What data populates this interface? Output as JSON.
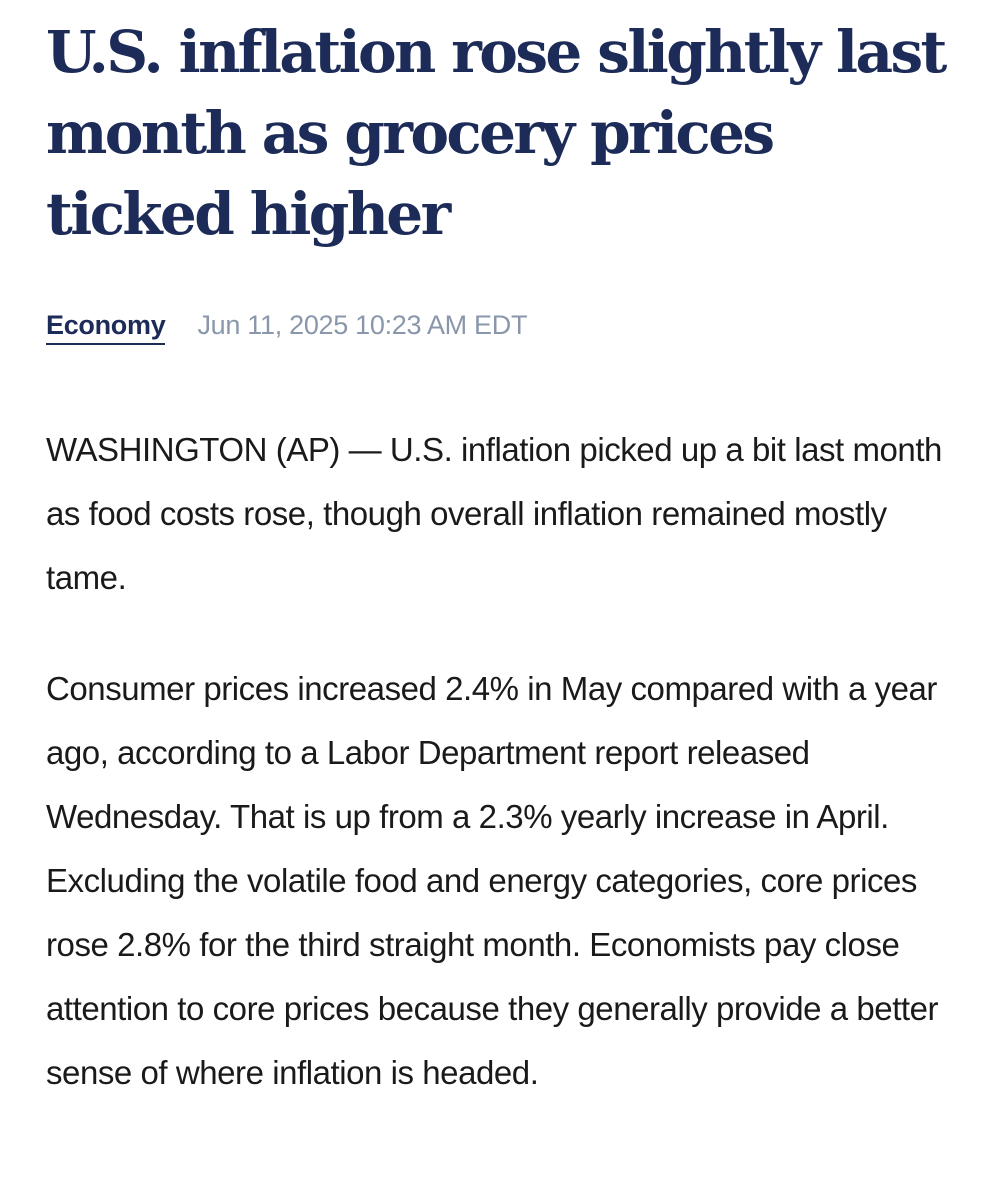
{
  "article": {
    "headline": "U.S. inflation rose slightly last month as grocery prices ticked higher",
    "category": "Economy",
    "timestamp": "Jun 11, 2025 10:23 AM EDT",
    "paragraphs": [
      "WASHINGTON (AP) — U.S. inflation picked up a bit last month as food costs rose, though overall inflation remained mostly tame.",
      "Consumer prices increased 2.4% in May compared with a year ago, according to a Labor Department report released Wednesday. That is up from a 2.3% yearly increase in April. Excluding the volatile food and energy categories, core prices rose 2.8% for the third straight month. Economists pay close attention to core prices because they generally provide a better sense of where inflation is headed."
    ]
  },
  "colors": {
    "headline": "#1c2b57",
    "timestamp": "#8a97ab",
    "body": "#1a1a1a"
  }
}
